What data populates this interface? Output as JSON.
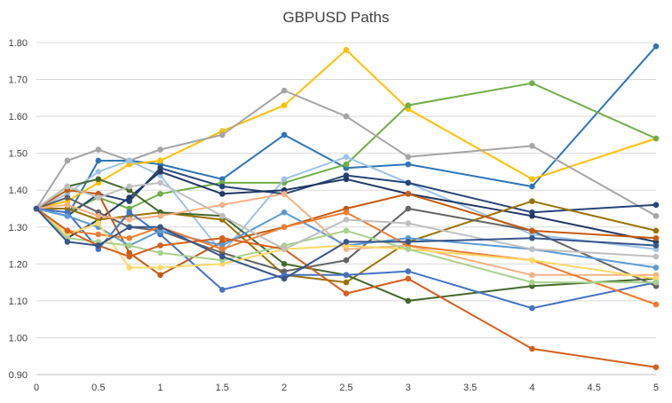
{
  "chart_data": {
    "type": "line",
    "title": "GBPUSD Paths",
    "xlabel": "",
    "ylabel": "",
    "xlim": [
      0,
      5
    ],
    "ylim": [
      0.9,
      1.8
    ],
    "x_ticks": [
      "0",
      "0.5",
      "1",
      "1.5",
      "2",
      "2.5",
      "3",
      "3.5",
      "4",
      "4.5",
      "5"
    ],
    "y_ticks": [
      "0.90",
      "1.00",
      "1.10",
      "1.20",
      "1.30",
      "1.40",
      "1.50",
      "1.60",
      "1.70",
      "1.80"
    ],
    "grid": "horizontal",
    "legend": "none",
    "x": [
      0,
      0.25,
      0.5,
      0.75,
      1,
      1.5,
      2,
      2.5,
      3,
      4,
      5
    ],
    "series": [
      {
        "color": "#2e75b6",
        "values": [
          1.35,
          1.33,
          1.48,
          1.48,
          1.47,
          1.43,
          1.55,
          1.46,
          1.47,
          1.41,
          1.79
        ]
      },
      {
        "color": "#ffc000",
        "values": [
          1.35,
          1.37,
          1.42,
          1.47,
          1.48,
          1.56,
          1.63,
          1.78,
          1.62,
          1.43,
          1.54
        ]
      },
      {
        "color": "#70ad47",
        "values": [
          1.35,
          1.34,
          1.38,
          1.35,
          1.39,
          1.42,
          1.42,
          1.47,
          1.63,
          1.69,
          1.54
        ]
      },
      {
        "color": "#a5a5a5",
        "values": [
          1.35,
          1.48,
          1.51,
          1.48,
          1.51,
          1.55,
          1.67,
          1.6,
          1.49,
          1.52,
          1.33
        ]
      },
      {
        "color": "#9dc3e6",
        "values": [
          1.35,
          1.39,
          1.45,
          1.48,
          1.44,
          1.23,
          1.43,
          1.49,
          1.42,
          1.28,
          1.24
        ]
      },
      {
        "color": "#264478",
        "values": [
          1.35,
          1.33,
          1.39,
          1.37,
          1.46,
          1.41,
          1.39,
          1.44,
          1.42,
          1.34,
          1.36
        ]
      },
      {
        "color": "#203864",
        "values": [
          1.35,
          1.27,
          1.32,
          1.38,
          1.45,
          1.39,
          1.4,
          1.43,
          1.39,
          1.33,
          1.26
        ]
      },
      {
        "color": "#997300",
        "values": [
          1.35,
          1.35,
          1.32,
          1.33,
          1.34,
          1.32,
          1.17,
          1.15,
          1.26,
          1.37,
          1.29
        ]
      },
      {
        "color": "#43682b",
        "values": [
          1.35,
          1.41,
          1.43,
          1.4,
          1.34,
          1.33,
          1.2,
          1.17,
          1.1,
          1.14,
          1.16
        ]
      },
      {
        "color": "#636363",
        "values": [
          1.35,
          1.38,
          1.34,
          1.3,
          1.29,
          1.23,
          1.18,
          1.21,
          1.35,
          1.29,
          1.14
        ]
      },
      {
        "color": "#c55a11",
        "values": [
          1.35,
          1.4,
          1.39,
          1.23,
          1.17,
          1.26,
          1.3,
          1.35,
          1.39,
          1.29,
          1.27
        ]
      },
      {
        "color": "#f4b183",
        "values": [
          1.35,
          1.36,
          1.33,
          1.32,
          1.33,
          1.36,
          1.39,
          1.24,
          1.25,
          1.17,
          1.17
        ]
      },
      {
        "color": "#4472c4",
        "values": [
          1.35,
          1.34,
          1.24,
          1.34,
          1.28,
          1.13,
          1.17,
          1.17,
          1.18,
          1.08,
          1.15
        ]
      },
      {
        "color": "#5b9bd5",
        "values": [
          1.35,
          1.33,
          1.3,
          1.25,
          1.29,
          1.25,
          1.34,
          1.25,
          1.27,
          1.24,
          1.19
        ]
      },
      {
        "color": "#ed7d31",
        "values": [
          1.35,
          1.29,
          1.28,
          1.27,
          1.3,
          1.24,
          1.3,
          1.34,
          1.25,
          1.21,
          1.09
        ]
      },
      {
        "color": "#ffd966",
        "values": [
          1.35,
          1.28,
          1.31,
          1.19,
          1.19,
          1.2,
          1.24,
          1.25,
          1.24,
          1.21,
          1.16
        ]
      },
      {
        "color": "#a9d18e",
        "values": [
          1.35,
          1.27,
          1.26,
          1.25,
          1.23,
          1.21,
          1.25,
          1.29,
          1.24,
          1.15,
          1.15
        ]
      },
      {
        "color": "#d55f1c",
        "values": [
          1.35,
          1.29,
          1.25,
          1.22,
          1.25,
          1.27,
          1.24,
          1.12,
          1.16,
          0.97,
          0.92
        ]
      },
      {
        "color": "#bfbfbf",
        "values": [
          1.35,
          1.41,
          1.38,
          1.41,
          1.42,
          1.33,
          1.24,
          1.32,
          1.31,
          1.24,
          1.22
        ]
      },
      {
        "color": "#38558c",
        "values": [
          1.35,
          1.26,
          1.25,
          1.3,
          1.3,
          1.22,
          1.16,
          1.26,
          1.26,
          1.27,
          1.25
        ]
      }
    ]
  }
}
